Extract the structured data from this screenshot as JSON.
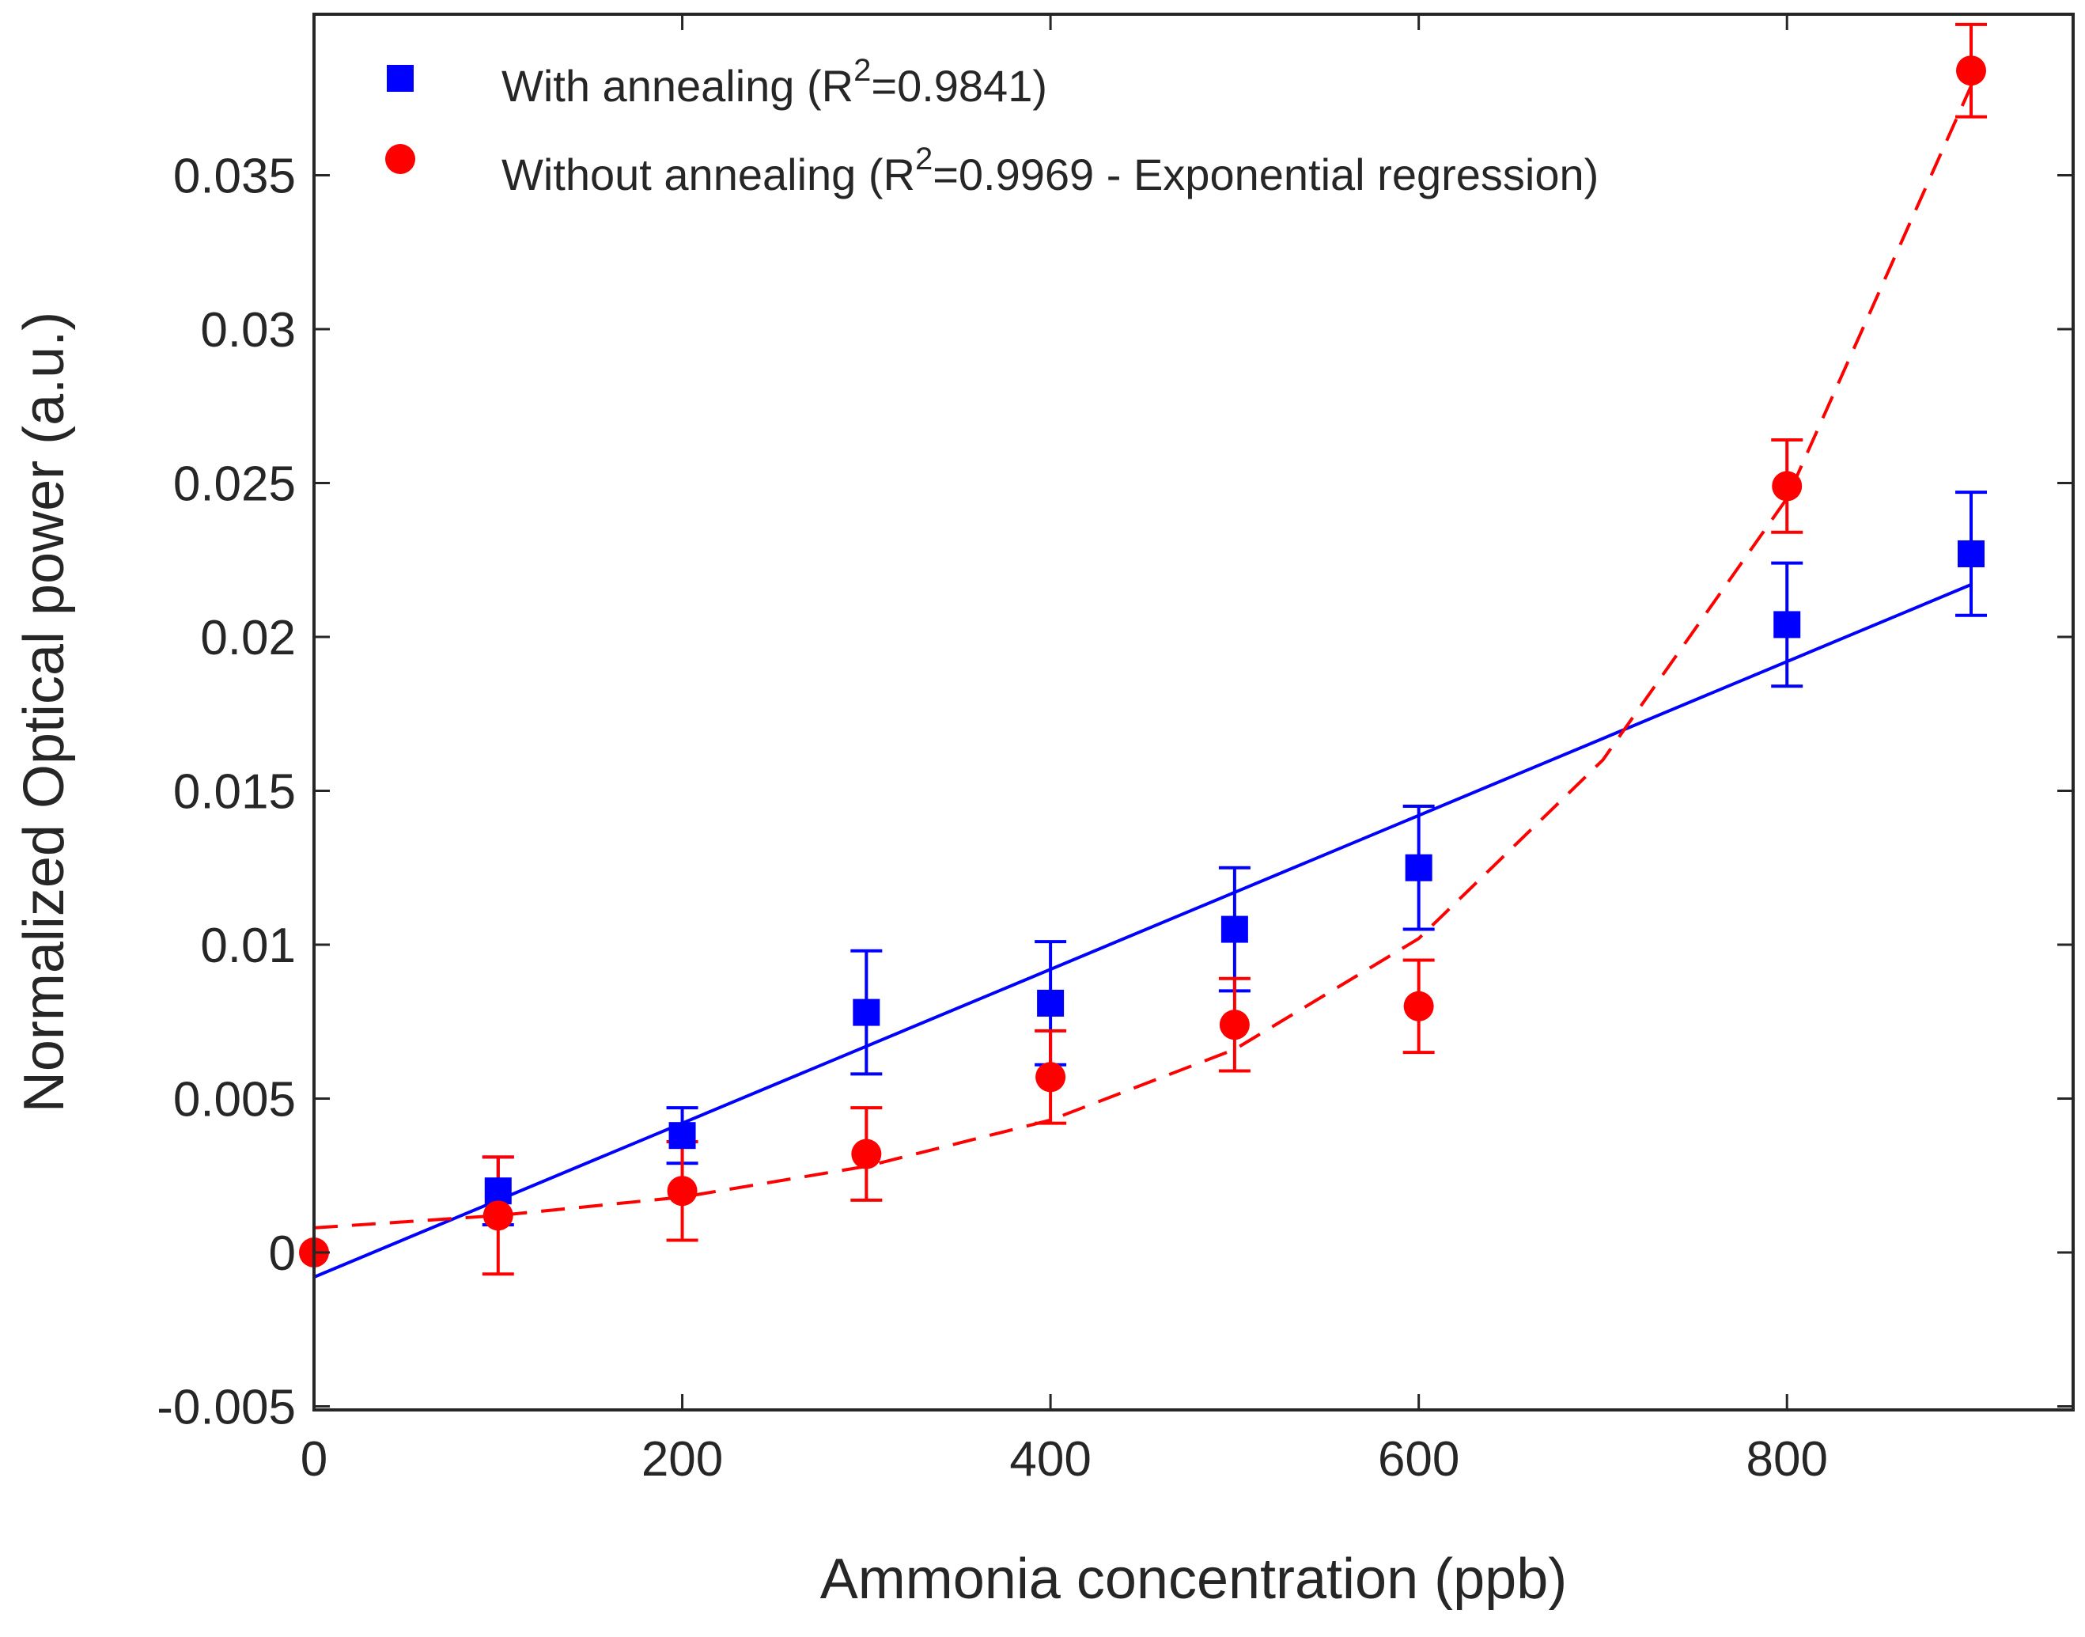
{
  "chart_data": {
    "type": "scatter",
    "xlabel": "Ammonia concentration (ppb)",
    "ylabel": "Normalized Optical power (a.u.)",
    "xlim": [
      0,
      950
    ],
    "ylim": [
      -0.005,
      0.04
    ],
    "xticks": [
      0,
      200,
      400,
      600,
      800
    ],
    "xtick_labels": [
      "0",
      "200",
      "400",
      "600",
      "800"
    ],
    "yticks": [
      -0.005,
      0,
      0.005,
      0.01,
      0.015,
      0.02,
      0.025,
      0.03,
      0.035
    ],
    "ytick_labels": [
      "-0.005",
      "0",
      "0.005",
      "0.01",
      "0.015",
      "0.02",
      "0.025",
      "0.03",
      "0.035"
    ],
    "grid": false,
    "legend_position": "top-left",
    "series": [
      {
        "name": "With annealing",
        "legend": {
          "prefix": "With annealing (R",
          "sup": "2",
          "suffix": "=0.9841)"
        },
        "marker": "square",
        "color": "#0000ff",
        "fit": "linear",
        "fit_style": "solid",
        "fit_line": {
          "x": [
            0,
            900
          ],
          "y": [
            -0.0008,
            0.0217
          ]
        },
        "x": [
          100,
          200,
          300,
          400,
          500,
          600,
          800,
          900
        ],
        "y": [
          0.002,
          0.0038,
          0.0078,
          0.0081,
          0.0105,
          0.0125,
          0.0204,
          0.0227
        ],
        "error": [
          0.0011,
          0.0009,
          0.002,
          0.002,
          0.002,
          0.002,
          0.002,
          0.002
        ]
      },
      {
        "name": "Without annealing",
        "legend": {
          "prefix": "Without annealing (R",
          "sup": "2",
          "suffix": "=0.9969 - Exponential regression)"
        },
        "marker": "circle",
        "color": "#ff0000",
        "fit": "exponential",
        "fit_style": "dashed",
        "fit_line": {
          "x": [
            0,
            100,
            200,
            300,
            400,
            500,
            600,
            700,
            800,
            900
          ],
          "y": [
            0.0008,
            0.0012,
            0.0018,
            0.0028,
            0.0043,
            0.0066,
            0.0102,
            0.016,
            0.0245,
            0.0379
          ]
        },
        "x": [
          0,
          100,
          200,
          300,
          400,
          500,
          600,
          800,
          900
        ],
        "y": [
          0.0,
          0.0012,
          0.002,
          0.0032,
          0.0057,
          0.0074,
          0.008,
          0.0249,
          0.0384
        ],
        "error": [
          0,
          0.0019,
          0.0016,
          0.0015,
          0.0015,
          0.0015,
          0.0015,
          0.0015,
          0.0015
        ]
      }
    ]
  }
}
